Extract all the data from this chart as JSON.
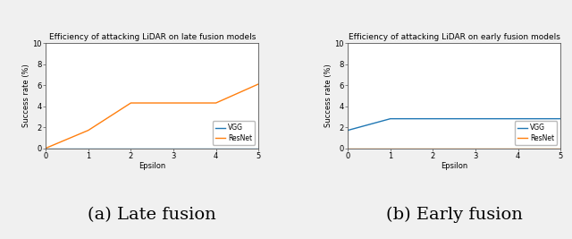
{
  "left": {
    "title": "Efficiency of attacking LiDAR on late fusion models",
    "xlabel": "Epsilon",
    "ylabel": "Success rate (%)",
    "ylim": [
      0,
      10
    ],
    "xlim": [
      0,
      5
    ],
    "yticks": [
      0,
      2,
      4,
      6,
      8,
      10
    ],
    "xticks": [
      0,
      1,
      2,
      3,
      4,
      5
    ],
    "vgg_x": [
      0,
      1,
      2,
      3,
      4,
      5
    ],
    "vgg_y": [
      0,
      0,
      0,
      0,
      0,
      0
    ],
    "resnet_x": [
      0,
      1,
      2,
      3,
      4,
      5
    ],
    "resnet_y": [
      0,
      1.7,
      4.3,
      4.3,
      4.3,
      6.1
    ],
    "vgg_color": "#1f77b4",
    "resnet_color": "#ff7f0e",
    "vgg_label": "VGG",
    "resnet_label": "ResNet",
    "caption": "(a) Late fusion"
  },
  "right": {
    "title": "Efficiency of attacking LiDAR on early fusion models",
    "xlabel": "Epsilon",
    "ylabel": "Success rate (%)",
    "ylim": [
      0,
      10
    ],
    "xlim": [
      0,
      5
    ],
    "yticks": [
      0,
      2,
      4,
      6,
      8,
      10
    ],
    "xticks": [
      0,
      1,
      2,
      3,
      4,
      5
    ],
    "vgg_x": [
      0,
      1,
      2,
      3,
      4,
      5
    ],
    "vgg_y": [
      1.7,
      2.8,
      2.8,
      2.8,
      2.8,
      2.8
    ],
    "resnet_x": [
      0,
      1,
      2,
      3,
      4,
      5
    ],
    "resnet_y": [
      0,
      0,
      0,
      0,
      0,
      0
    ],
    "vgg_color": "#1f77b4",
    "resnet_color": "#ff7f0e",
    "vgg_label": "VGG",
    "resnet_label": "ResNet",
    "caption": "(b) Early fusion"
  },
  "caption_fontsize": 14,
  "title_fontsize": 6.5,
  "label_fontsize": 6,
  "tick_fontsize": 6,
  "legend_fontsize": 5.5,
  "line_width": 1.0,
  "plot_bg": "#ffffff",
  "fig_facecolor": "#f0f0f0"
}
